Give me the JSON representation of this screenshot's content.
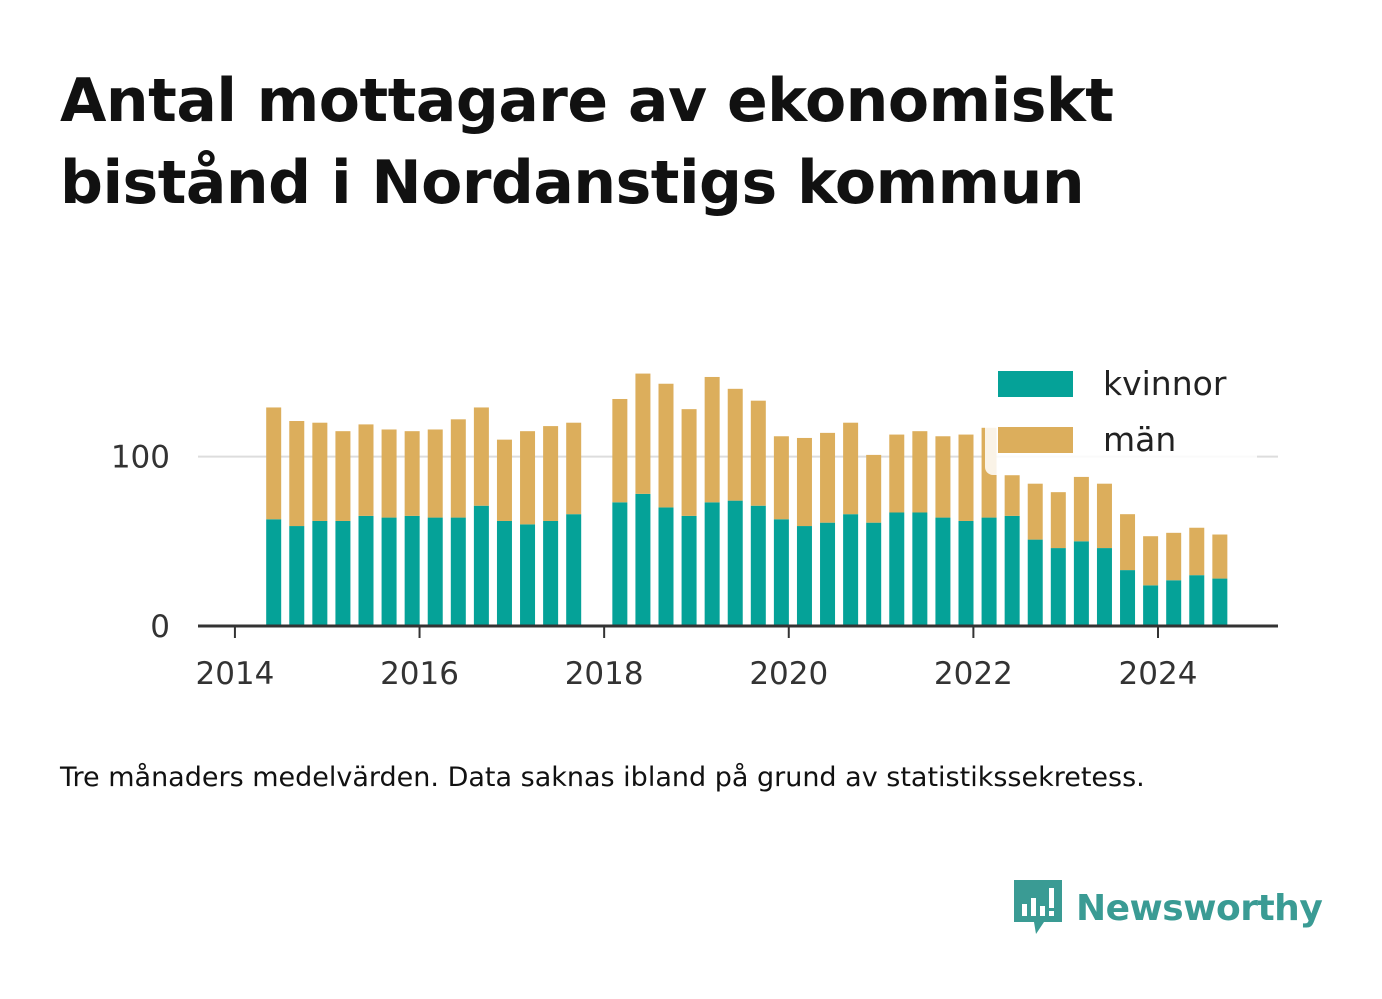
{
  "title": "Antal mottagare av ekonomiskt bistånd i Nordanstigs kommun",
  "note": "Tre månaders medelvärden. Data saknas ibland på grund av statistikssekretess.",
  "brand": {
    "name": "Newsworthy",
    "color": "#3a9b94",
    "icon": "newsworthy-logo-icon"
  },
  "colors": {
    "kvinnor": "#05a298",
    "man": "#dcae5c",
    "axis": "#333333",
    "grid": "#dddddd"
  },
  "chart_data": {
    "type": "bar",
    "stacked": true,
    "x_unit": "year",
    "xlim": [
      2013.6,
      2025.3
    ],
    "ylim": [
      0,
      170
    ],
    "x_ticks": [
      2014,
      2016,
      2018,
      2020,
      2022,
      2024
    ],
    "y_ticks": [
      0,
      100
    ],
    "grid": "horizontal",
    "legend_position": "top-right",
    "x": [
      2014.42,
      2014.67,
      2014.92,
      2015.17,
      2015.42,
      2015.67,
      2015.92,
      2016.17,
      2016.42,
      2016.67,
      2016.92,
      2017.17,
      2017.42,
      2017.67,
      2018.17,
      2018.42,
      2018.67,
      2018.92,
      2019.17,
      2019.42,
      2019.67,
      2019.92,
      2020.17,
      2020.42,
      2020.67,
      2020.92,
      2021.17,
      2021.42,
      2021.67,
      2021.92,
      2022.17,
      2022.42,
      2022.67,
      2022.92,
      2023.17,
      2023.42,
      2023.67,
      2023.92,
      2024.17,
      2024.42,
      2024.67
    ],
    "series": [
      {
        "name": "kvinnor",
        "values": [
          63,
          59,
          62,
          62,
          65,
          64,
          65,
          64,
          64,
          71,
          62,
          60,
          62,
          66,
          73,
          78,
          70,
          65,
          73,
          74,
          71,
          63,
          59,
          61,
          66,
          61,
          67,
          67,
          64,
          62,
          64,
          65,
          51,
          46,
          50,
          46,
          33,
          24,
          27,
          30,
          28
        ]
      },
      {
        "name": "män",
        "values": [
          66,
          62,
          58,
          53,
          54,
          52,
          50,
          52,
          58,
          58,
          48,
          55,
          56,
          54,
          61,
          71,
          73,
          63,
          74,
          66,
          62,
          49,
          52,
          53,
          54,
          40,
          46,
          48,
          48,
          51,
          53,
          24,
          33,
          33,
          38,
          38,
          33,
          29,
          28,
          28,
          26
        ]
      }
    ]
  }
}
